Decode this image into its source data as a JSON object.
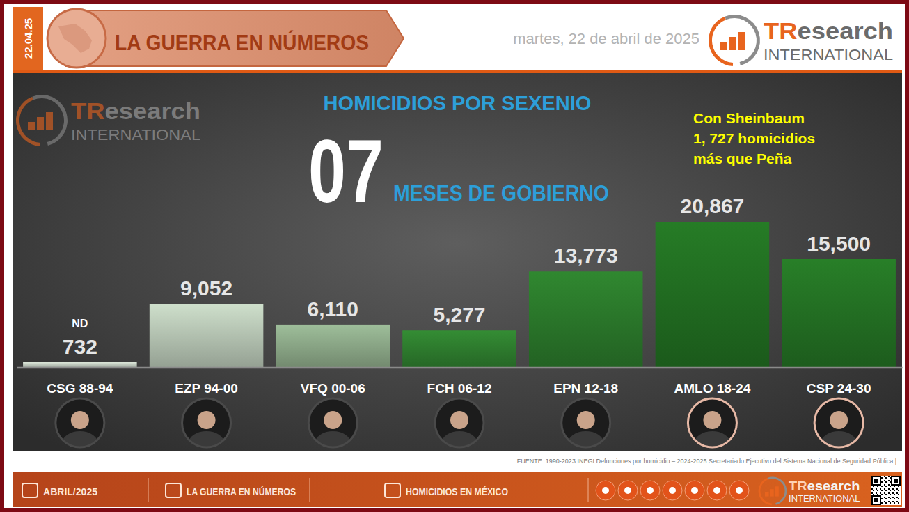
{
  "header": {
    "date_code": "22.04.25",
    "title": "LA GUERRA EN NÚMEROS",
    "date": "martes, 22 de abril de 2025",
    "logo": [
      "TResearch",
      "INTERNATIONAL"
    ]
  },
  "chart_data": {
    "type": "bar",
    "title": "HOMICIDIOS POR SEXENIO",
    "subtitle": [
      "07",
      "MESES DE GOBIERNO"
    ],
    "annotations": [
      [
        "Con Sheinbaum",
        "1, 727 homicidios",
        "más que Peña"
      ],
      "ND"
    ],
    "watermark": [
      "TResearch",
      "INTERNATIONAL"
    ],
    "categories": [
      "CSG 88-94",
      "EZP 94-00",
      "VFQ 00-06",
      "FCH 06-12",
      "EPN 12-18",
      "AMLO 18-24",
      "CSP 24-30"
    ],
    "values": [
      732,
      9052,
      6110,
      5277,
      13773,
      20867,
      15500
    ],
    "value_labels": [
      "732",
      "9,052",
      "6,110",
      "5,277",
      "13,773",
      "20,867",
      "15,500"
    ],
    "colors": [
      "#c8d2c6",
      "#b9c8b6",
      "#8eab8a",
      "#2f7f2f",
      "#2b7a2b",
      "#226f22",
      "#247224"
    ],
    "ylim": [
      0,
      21000
    ],
    "data_labels": true,
    "tick_labels": "x",
    "grid": false,
    "source": "FUENTE: 1990-2023 INEGI Defunciones por homicidio – 2024-2025 Secretariado Ejecutivo del Sistema Nacional de Seguridad Pública |"
  },
  "footer": {
    "items": [
      "ABRIL/2025",
      "LA GUERRA EN NÚMEROS",
      "HOMICIDIOS EN MÉXICO"
    ],
    "logo": [
      "TResearch",
      "INTERNATIONAL"
    ]
  }
}
